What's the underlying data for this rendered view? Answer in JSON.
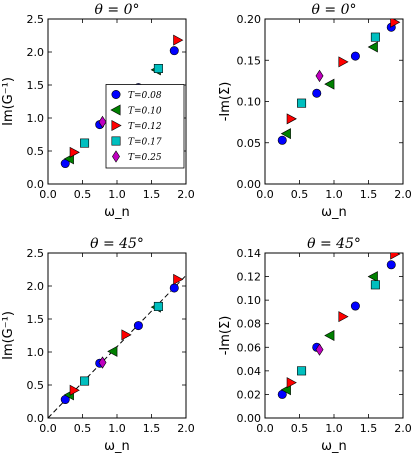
{
  "chart_data": [
    {
      "type": "scatter",
      "title": "θ = 0°",
      "xlabel": "ω_n",
      "ylabel": "Im(G⁻¹)",
      "xlim": [
        0.0,
        2.0
      ],
      "ylim": [
        0.0,
        2.5
      ],
      "xticks": [
        "0.0",
        "0.5",
        "1.0",
        "1.5",
        "2.0"
      ],
      "yticks": [
        "0.0",
        "0.5",
        "1.0",
        "1.5",
        "2.0",
        "2.5"
      ],
      "legend": {
        "position": "lower-right"
      },
      "fit_line": null,
      "series": [
        {
          "name": "T=0.08",
          "marker": "circle",
          "color": "#0000ff",
          "points": [
            [
              0.25,
              0.31
            ],
            [
              0.75,
              0.9
            ],
            [
              1.31,
              1.46
            ],
            [
              1.83,
              2.02
            ]
          ]
        },
        {
          "name": "T=0.10",
          "marker": "triangle-left",
          "color": "#008000",
          "points": [
            [
              0.31,
              0.38
            ],
            [
              0.94,
              1.13
            ],
            [
              1.57,
              1.73
            ]
          ]
        },
        {
          "name": "T=0.12",
          "marker": "triangle-right",
          "color": "#ff0000",
          "points": [
            [
              0.38,
              0.48
            ],
            [
              1.13,
              1.33
            ],
            [
              1.88,
              2.18
            ]
          ]
        },
        {
          "name": "T=0.17",
          "marker": "square",
          "color": "#00bfbf",
          "points": [
            [
              0.53,
              0.62
            ],
            [
              1.6,
              1.75
            ]
          ]
        },
        {
          "name": "T=0.25",
          "marker": "diamond",
          "color": "#bf00bf",
          "points": [
            [
              0.79,
              0.94
            ]
          ]
        }
      ]
    },
    {
      "type": "scatter",
      "title": "θ = 0°",
      "xlabel": "ω_n",
      "ylabel": "-Im(Σ)",
      "xlim": [
        0.0,
        2.0
      ],
      "ylim": [
        0.0,
        0.2
      ],
      "xticks": [
        "0.0",
        "0.5",
        "1.0",
        "1.5",
        "2.0"
      ],
      "yticks": [
        "0.00",
        "0.05",
        "0.10",
        "0.15",
        "0.20"
      ],
      "legend": null,
      "fit_line": null,
      "series": [
        {
          "name": "T=0.08",
          "marker": "circle",
          "color": "#0000ff",
          "points": [
            [
              0.25,
              0.053
            ],
            [
              0.75,
              0.11
            ],
            [
              1.31,
              0.155
            ],
            [
              1.83,
              0.19
            ]
          ]
        },
        {
          "name": "T=0.10",
          "marker": "triangle-left",
          "color": "#008000",
          "points": [
            [
              0.31,
              0.061
            ],
            [
              0.94,
              0.121
            ],
            [
              1.57,
              0.166
            ]
          ]
        },
        {
          "name": "T=0.12",
          "marker": "triangle-right",
          "color": "#ff0000",
          "points": [
            [
              0.38,
              0.079
            ],
            [
              1.13,
              0.148
            ],
            [
              1.88,
              0.196
            ]
          ]
        },
        {
          "name": "T=0.17",
          "marker": "square",
          "color": "#00bfbf",
          "points": [
            [
              0.53,
              0.098
            ],
            [
              1.6,
              0.178
            ]
          ]
        },
        {
          "name": "T=0.25",
          "marker": "diamond",
          "color": "#bf00bf",
          "points": [
            [
              0.79,
              0.131
            ]
          ]
        }
      ]
    },
    {
      "type": "scatter",
      "title": "θ = 45°",
      "xlabel": "ω_n",
      "ylabel": "Im(G⁻¹)",
      "xlim": [
        0.0,
        2.0
      ],
      "ylim": [
        0.0,
        2.5
      ],
      "xticks": [
        "0.0",
        "0.5",
        "1.0",
        "1.5",
        "2.0"
      ],
      "yticks": [
        "0.0",
        "0.5",
        "1.0",
        "1.5",
        "2.0",
        "2.5"
      ],
      "legend": null,
      "fit_line": {
        "style": "dashed",
        "color": "#000000",
        "from": [
          0.0,
          0.0
        ],
        "to": [
          2.0,
          2.16
        ]
      },
      "series": [
        {
          "name": "T=0.08",
          "marker": "circle",
          "color": "#0000ff",
          "points": [
            [
              0.25,
              0.28
            ],
            [
              0.75,
              0.83
            ],
            [
              1.31,
              1.4
            ],
            [
              1.83,
              1.97
            ]
          ]
        },
        {
          "name": "T=0.10",
          "marker": "triangle-left",
          "color": "#008000",
          "points": [
            [
              0.31,
              0.35
            ],
            [
              0.94,
              1.01
            ],
            [
              1.57,
              1.68
            ]
          ]
        },
        {
          "name": "T=0.12",
          "marker": "triangle-right",
          "color": "#ff0000",
          "points": [
            [
              0.38,
              0.42
            ],
            [
              1.13,
              1.26
            ],
            [
              1.88,
              2.1
            ]
          ]
        },
        {
          "name": "T=0.17",
          "marker": "square",
          "color": "#00bfbf",
          "points": [
            [
              0.53,
              0.56
            ],
            [
              1.6,
              1.69
            ]
          ]
        },
        {
          "name": "T=0.25",
          "marker": "diamond",
          "color": "#bf00bf",
          "points": [
            [
              0.79,
              0.84
            ]
          ]
        }
      ]
    },
    {
      "type": "scatter",
      "title": "θ = 45°",
      "xlabel": "ω_n",
      "ylabel": "-Im(Σ)",
      "xlim": [
        0.0,
        2.0
      ],
      "ylim": [
        0.0,
        0.14
      ],
      "xticks": [
        "0.0",
        "0.5",
        "1.0",
        "1.5",
        "2.0"
      ],
      "yticks": [
        "0.00",
        "0.02",
        "0.04",
        "0.06",
        "0.08",
        "0.10",
        "0.12",
        "0.14"
      ],
      "legend": null,
      "fit_line": null,
      "series": [
        {
          "name": "T=0.08",
          "marker": "circle",
          "color": "#0000ff",
          "points": [
            [
              0.25,
              0.02
            ],
            [
              0.75,
              0.06
            ],
            [
              1.31,
              0.095
            ],
            [
              1.83,
              0.13
            ]
          ]
        },
        {
          "name": "T=0.10",
          "marker": "triangle-left",
          "color": "#008000",
          "points": [
            [
              0.31,
              0.024
            ],
            [
              0.94,
              0.07
            ],
            [
              1.57,
              0.12
            ]
          ]
        },
        {
          "name": "T=0.12",
          "marker": "triangle-right",
          "color": "#ff0000",
          "points": [
            [
              0.38,
              0.03
            ],
            [
              1.13,
              0.086
            ],
            [
              1.88,
              0.139
            ]
          ]
        },
        {
          "name": "T=0.17",
          "marker": "square",
          "color": "#00bfbf",
          "points": [
            [
              0.53,
              0.04
            ],
            [
              1.6,
              0.113
            ]
          ]
        },
        {
          "name": "T=0.25",
          "marker": "diamond",
          "color": "#bf00bf",
          "points": [
            [
              0.79,
              0.058
            ]
          ]
        }
      ]
    }
  ]
}
